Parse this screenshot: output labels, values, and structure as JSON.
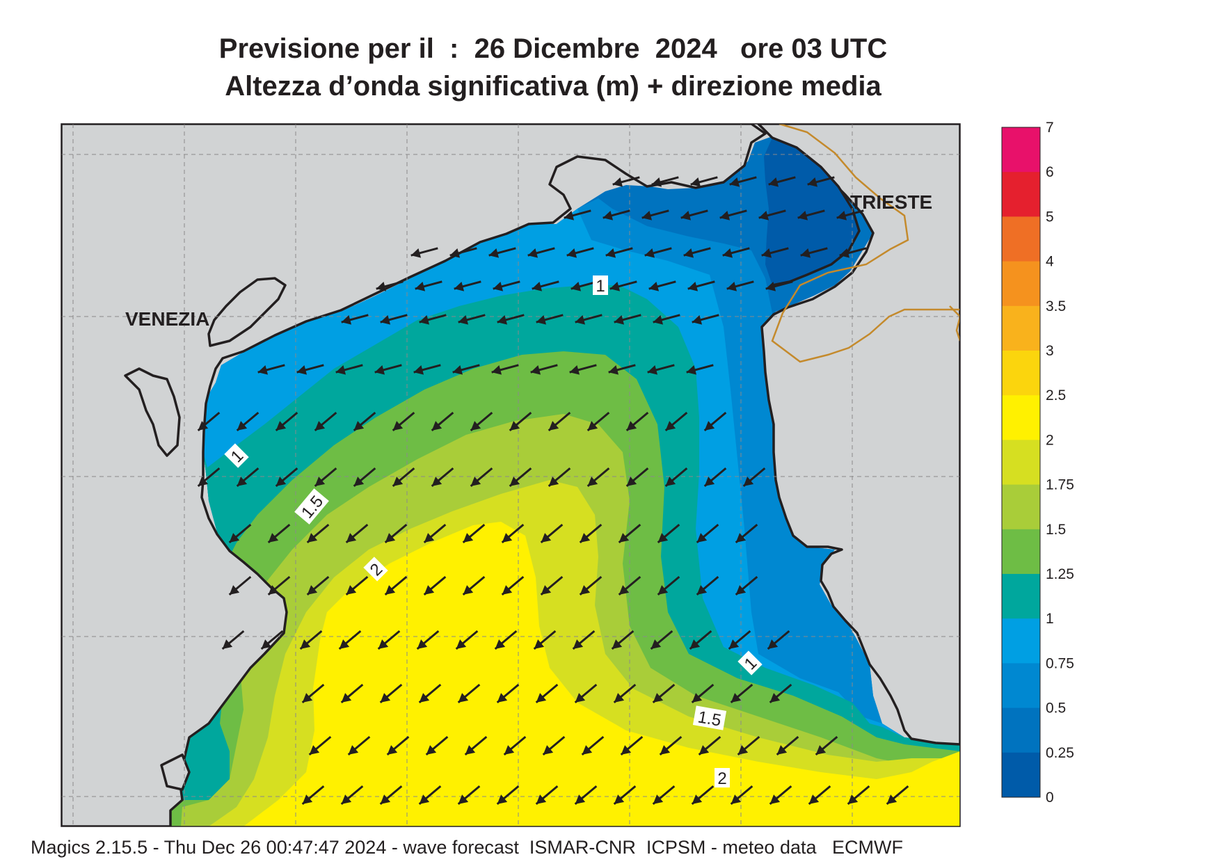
{
  "title_line1": "Previsione per il  :  26 Dicembre  2024   ore 03 UTC",
  "title_line2": "Altezza d’onda significativa (m) + direzione media",
  "places": {
    "venezia": "VENEZIA",
    "trieste": "TRIESTE"
  },
  "footer": "Magics 2.15.5 - Thu Dec 26 00:47:47 2024 - wave forecast  ISMAR-CNR  ICPSM - meteo data   ECMWF",
  "contour_labels": [
    "1",
    "1.5",
    "2",
    "1",
    "1.5",
    "2",
    "1"
  ],
  "legend": {
    "ticks": [
      "7",
      "6",
      "5",
      "4",
      "3.5",
      "3",
      "2.5",
      "2",
      "1.75",
      "1.5",
      "1.25",
      "1",
      "0.75",
      "0.5",
      "0.25",
      "0"
    ],
    "colors": [
      "#e8116a",
      "#e5202e",
      "#ef6f25",
      "#f5921e",
      "#f9b21c",
      "#fbd50d",
      "#fff100",
      "#d6df21",
      "#a9cd39",
      "#6ebd45",
      "#00a79d",
      "#009fe3",
      "#0088d1",
      "#0073bf",
      "#005ba9"
    ]
  },
  "colors": {
    "land": "#d1d3d4",
    "coast": "#231f20",
    "arrow": "#231f20",
    "border": "#c48a2c"
  },
  "wave_direction": "toward south-west"
}
